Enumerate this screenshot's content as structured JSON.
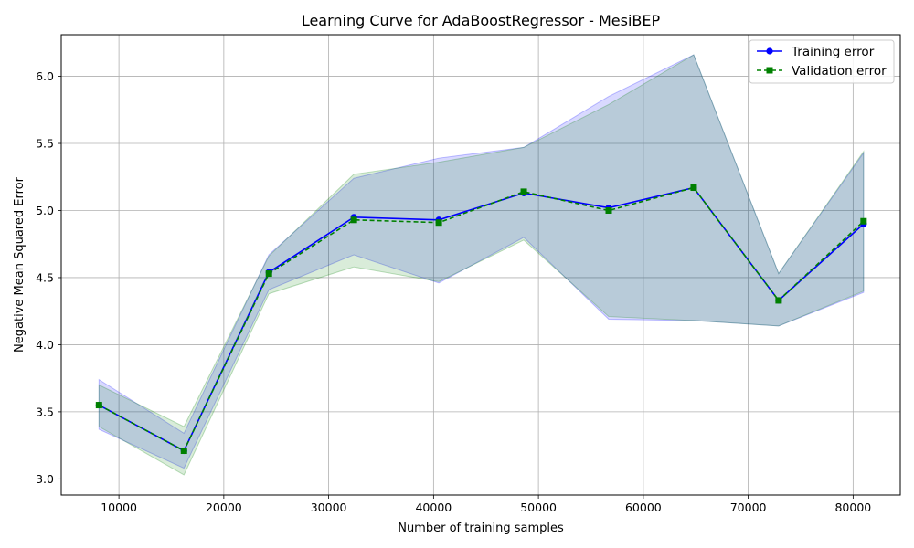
{
  "chart_data": {
    "type": "line",
    "title": "Learning Curve for AdaBoostRegressor - MesiBEP",
    "xlabel": "Number of training samples",
    "ylabel": "Negative Mean Squared Error",
    "xlim": [
      4500,
      84500
    ],
    "ylim": [
      2.88,
      6.31
    ],
    "xticks": [
      10000,
      20000,
      30000,
      40000,
      50000,
      60000,
      70000,
      80000
    ],
    "yticks": [
      3.0,
      3.5,
      4.0,
      4.5,
      5.0,
      5.5,
      6.0
    ],
    "grid": true,
    "legend_position": "top-right",
    "x": [
      8100,
      16200,
      24300,
      32400,
      40500,
      48600,
      56700,
      64800,
      72900,
      81000
    ],
    "series": [
      {
        "name": "Training error",
        "color": "#0000ff",
        "marker": "circle",
        "line_style": "solid",
        "values": [
          3.55,
          3.21,
          4.54,
          4.95,
          4.93,
          5.13,
          5.02,
          5.17,
          4.33,
          4.9
        ],
        "band_upper": [
          3.74,
          3.34,
          4.67,
          5.24,
          5.39,
          5.47,
          5.85,
          6.16,
          4.53,
          5.43
        ],
        "band_lower": [
          3.37,
          3.08,
          4.41,
          4.67,
          4.46,
          4.8,
          4.19,
          4.18,
          4.14,
          4.39
        ],
        "band_color": "#0000ff"
      },
      {
        "name": "Validation error",
        "color": "#008000",
        "marker": "square",
        "line_style": "dashed",
        "values": [
          3.55,
          3.21,
          4.53,
          4.93,
          4.91,
          5.14,
          5.0,
          5.17,
          4.33,
          4.92
        ],
        "band_upper": [
          3.7,
          3.39,
          4.66,
          5.27,
          5.36,
          5.47,
          5.79,
          6.16,
          4.53,
          5.44
        ],
        "band_lower": [
          3.39,
          3.03,
          4.38,
          4.58,
          4.47,
          4.78,
          4.21,
          4.18,
          4.14,
          4.4
        ],
        "band_color": "#008000"
      }
    ]
  }
}
